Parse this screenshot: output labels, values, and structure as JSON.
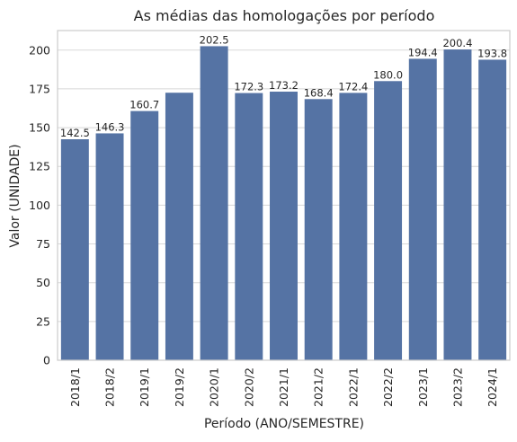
{
  "chart_data": {
    "type": "bar",
    "title": "As médias das homologações por período",
    "xlabel": "Período (ANO/SEMESTRE)",
    "ylabel": "Valor (UNIDADE)",
    "categories": [
      "2018/1",
      "2018/2",
      "2019/1",
      "2019/2",
      "2020/1",
      "2020/2",
      "2021/1",
      "2021/2",
      "2022/1",
      "2022/2",
      "2023/1",
      "2023/2",
      "2024/1"
    ],
    "values": [
      142.5,
      146.3,
      160.7,
      172.5,
      202.5,
      172.3,
      173.2,
      168.4,
      172.4,
      180.0,
      194.4,
      200.4,
      193.8
    ],
    "data_labels": [
      "142.5",
      "146.3",
      "160.7",
      "",
      "202.5",
      "172.3",
      "173.2",
      "168.4",
      "172.4",
      "180.0",
      "194.4",
      "200.4",
      "193.8"
    ],
    "ylim": [
      0,
      212.6
    ],
    "yticks": [
      0,
      25,
      50,
      75,
      100,
      125,
      150,
      175,
      200
    ],
    "grid": "horizontal",
    "colors": {
      "bar": "#5573a4",
      "grid": "#d8d8d8",
      "frame": "#cccccc",
      "text": "#262626"
    }
  }
}
